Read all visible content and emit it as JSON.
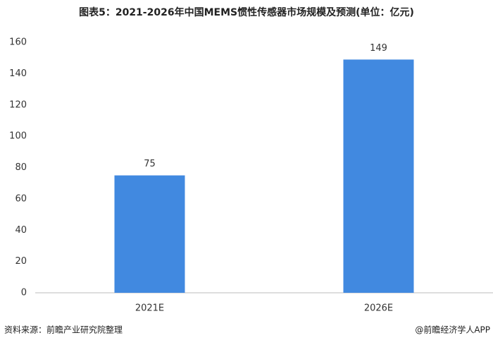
{
  "chart_data": {
    "type": "bar",
    "title": "图表5：2021-2026年中国MEMS惯性传感器市场规模及预测(单位：亿元)",
    "categories": [
      "2021E",
      "2026E"
    ],
    "values": [
      75,
      149
    ],
    "color": "#4189e0",
    "ylim": [
      0,
      160
    ],
    "yticks": [
      0,
      20,
      40,
      60,
      80,
      100,
      120,
      140,
      160
    ],
    "grid": false,
    "source": "资料来源：前瞻产业研究院整理",
    "credit": "@前瞻经济学人APP"
  }
}
